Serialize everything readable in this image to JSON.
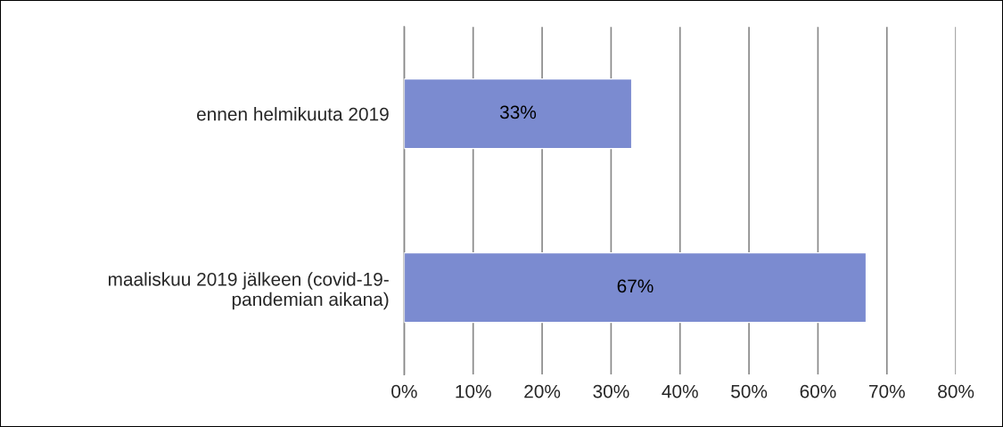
{
  "chart_data": {
    "type": "bar",
    "orientation": "horizontal",
    "categories": [
      "ennen helmikuuta 2019",
      "maaliskuu 2019 jälkeen (covid-19-\npandemian aikana)"
    ],
    "values": [
      33,
      67
    ],
    "color": "#7b8bd0",
    "value_labels": [
      "33%",
      "67%"
    ],
    "xlim": [
      0,
      80
    ],
    "xticks": [
      {
        "value": 0,
        "label": "0%"
      },
      {
        "value": 10,
        "label": "10%"
      },
      {
        "value": 20,
        "label": "20%"
      },
      {
        "value": 30,
        "label": "30%"
      },
      {
        "value": 40,
        "label": "40%"
      },
      {
        "value": 50,
        "label": "50%"
      },
      {
        "value": 60,
        "label": "60%"
      },
      {
        "value": 70,
        "label": "70%"
      },
      {
        "value": 80,
        "label": "80%"
      }
    ],
    "grid": "x",
    "legend": false
  }
}
